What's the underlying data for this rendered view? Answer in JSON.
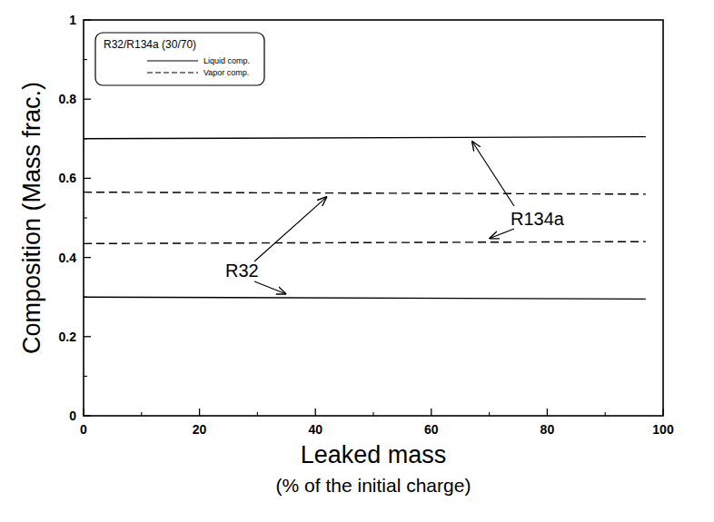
{
  "chart_data": {
    "type": "line",
    "legend_title": "R32/R134a (30/70)",
    "x_label": "Leaked mass",
    "x_sublabel": "(% of the initial charge)",
    "y_label": "Composition (Mass frac.)",
    "annotations": [
      "R134a",
      "R32"
    ],
    "x": [
      0,
      97
    ],
    "series": [
      {
        "name": "Liquid comp.",
        "color": "#000000",
        "line_style": "solid",
        "values": [
          0.7,
          0.705
        ]
      },
      {
        "name": "Vapor comp.",
        "color": "#000000",
        "line_style": "dashed",
        "values": [
          0.565,
          0.56
        ]
      },
      {
        "name": "Vapor comp.",
        "color": "#000000",
        "line_style": "dashed",
        "values": [
          0.435,
          0.44
        ]
      },
      {
        "name": "Liquid comp.",
        "color": "#000000",
        "line_style": "solid",
        "values": [
          0.3,
          0.295
        ]
      }
    ],
    "xlim": [
      0,
      100
    ],
    "xticks": [
      0,
      20,
      40,
      60,
      80,
      100
    ],
    "ylim": [
      0,
      1
    ],
    "yticks": [
      0,
      0.2,
      0.4,
      0.6,
      0.8,
      1
    ],
    "legend": "upper left",
    "grid": false
  }
}
